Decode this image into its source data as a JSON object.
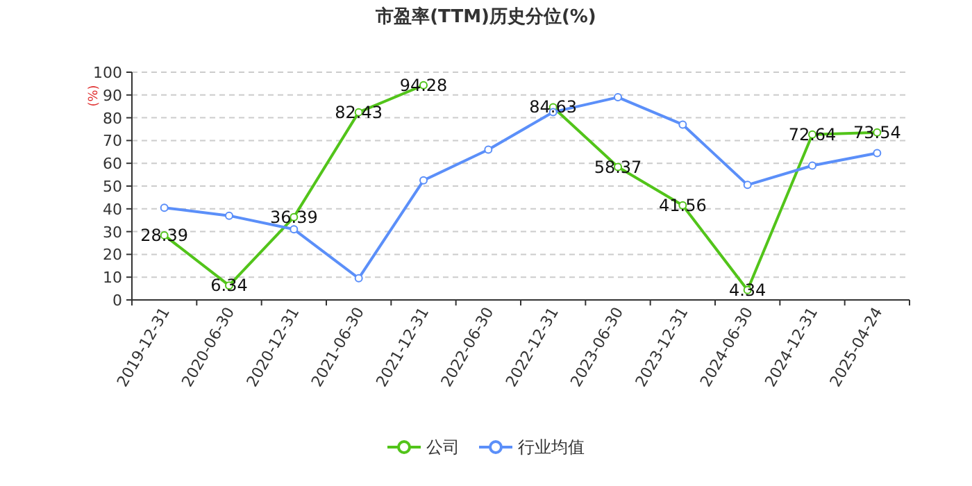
{
  "chart_data": {
    "type": "line",
    "title": "市盈率(TTM)历史分位(%)",
    "ylabel": "(%)",
    "categories": [
      "2019-12-31",
      "2020-06-30",
      "2020-12-31",
      "2021-06-30",
      "2021-12-31",
      "2022-06-30",
      "2022-12-31",
      "2023-06-30",
      "2023-12-31",
      "2024-06-30",
      "2024-12-31",
      "2025-04-24"
    ],
    "series": [
      {
        "name": "公司",
        "color": "#52c41a",
        "values": [
          28.39,
          6.34,
          36.39,
          82.43,
          94.28,
          null,
          84.63,
          58.37,
          41.56,
          4.34,
          72.64,
          73.54
        ],
        "value_labels": [
          "28.39",
          "6.34",
          "36.39",
          "82.43",
          "94.28",
          null,
          "84.63",
          "58.37",
          "41.56",
          "4.34",
          "72.64",
          "73.54"
        ]
      },
      {
        "name": "行业均值",
        "color": "#5b8ff9",
        "values": [
          40.5,
          37,
          31,
          9.5,
          52.5,
          66,
          82.5,
          89,
          77,
          50.5,
          59,
          64.5
        ]
      }
    ],
    "ylim": [
      0,
      100
    ],
    "yticks": [
      0,
      10,
      20,
      30,
      40,
      50,
      60,
      70,
      80,
      90,
      100
    ],
    "grid": "y",
    "legend": "bottom",
    "marker": "circle"
  }
}
